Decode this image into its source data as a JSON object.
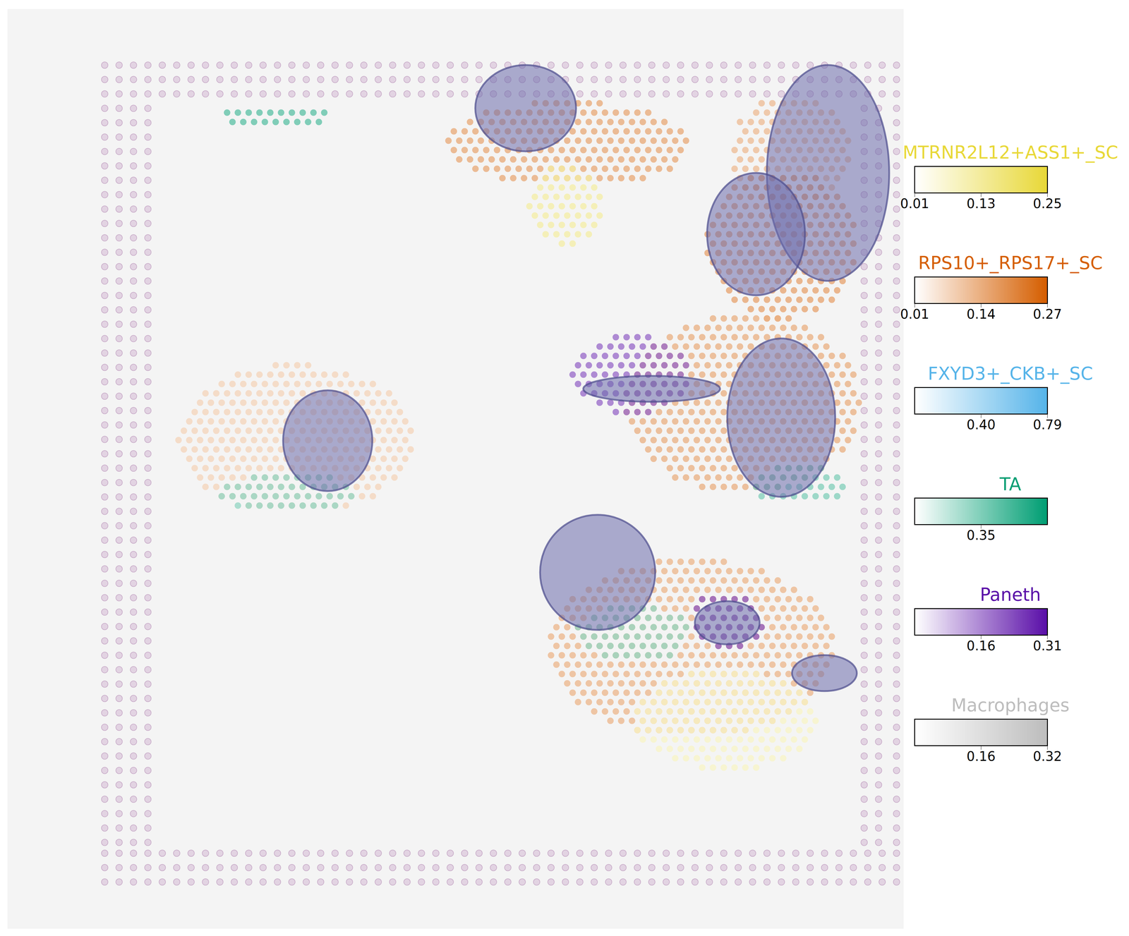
{
  "chart_data": {
    "type": "spatial_scatter",
    "xlim": [
      10,
      1255
    ],
    "ylim": [
      1290,
      12
    ],
    "tick_labels": false,
    "colorbars": [
      {
        "name": "MTRNR2L12+ASS1+_SC",
        "color": "#e8d838",
        "range": [
          0.01,
          0.25
        ],
        "ticks": [
          0.01,
          0.13,
          0.25
        ]
      },
      {
        "name": "RPS10+_RPS17+_SC",
        "color": "#d55e00",
        "range": [
          0.01,
          0.27
        ],
        "ticks": [
          0.01,
          0.14,
          0.27
        ]
      },
      {
        "name": "FXYD3+_CKB+_SC",
        "color": "#56b4e9",
        "range": [
          0.01,
          0.79
        ],
        "ticks": [
          {
            "value": 0.4,
            "label": "0.40"
          },
          0.79
        ]
      },
      {
        "name": "TA",
        "color": "#009e73",
        "range": [
          0.01,
          0.69
        ],
        "ticks": [
          0.35
        ]
      },
      {
        "name": "Paneth",
        "color": "#5a0fa8",
        "range": [
          0.01,
          0.31
        ],
        "ticks": [
          0.16,
          0.31
        ]
      },
      {
        "name": "Macrophages",
        "color": "#bdbdbd",
        "range": [
          0.0,
          0.32
        ],
        "ticks": [
          0.16,
          0.32
        ]
      }
    ],
    "spot_patches": [
      {
        "cell_type": "TA",
        "cx": 385,
        "cy": 162,
        "rx": 80,
        "ry": 14,
        "value": 0.45
      },
      {
        "cell_type": "RPS10+_RPS17+_SC",
        "cx": 790,
        "cy": 200,
        "rx": 170,
        "ry": 60,
        "value": 0.15
      },
      {
        "cell_type": "MTRNR2L12+ASS1+_SC",
        "cx": 785,
        "cy": 285,
        "rx": 55,
        "ry": 55,
        "value": 0.12
      },
      {
        "cell_type": "RPS10+_RPS17+_SC",
        "cx": 410,
        "cy": 610,
        "rx": 165,
        "ry": 105,
        "value": 0.08
      },
      {
        "cell_type": "TA",
        "cx": 400,
        "cy": 685,
        "rx": 95,
        "ry": 28,
        "value": 0.3
      },
      {
        "cell_type": "RPS10+_RPS17+_SC",
        "cx": 1100,
        "cy": 210,
        "rx": 85,
        "ry": 80,
        "value": 0.12
      },
      {
        "cell_type": "RPS10+_RPS17+_SC",
        "cx": 1085,
        "cy": 340,
        "rx": 105,
        "ry": 105,
        "value": 0.16
      },
      {
        "cell_type": "RPS10+_RPS17+_SC",
        "cx": 1030,
        "cy": 560,
        "rx": 165,
        "ry": 125,
        "value": 0.14
      },
      {
        "cell_type": "TA",
        "cx": 1110,
        "cy": 672,
        "rx": 70,
        "ry": 28,
        "value": 0.35
      },
      {
        "cell_type": "Paneth",
        "cx": 875,
        "cy": 520,
        "rx": 80,
        "ry": 55,
        "value": 0.2
      },
      {
        "cell_type": "RPS10+_RPS17+_SC",
        "cx": 960,
        "cy": 900,
        "rx": 200,
        "ry": 125,
        "value": 0.13
      },
      {
        "cell_type": "MTRNR2L12+ASS1+_SC",
        "cx": 1010,
        "cy": 1000,
        "rx": 130,
        "ry": 70,
        "value": 0.08
      },
      {
        "cell_type": "TA",
        "cx": 880,
        "cy": 880,
        "rx": 80,
        "ry": 40,
        "value": 0.3
      },
      {
        "cell_type": "Paneth",
        "cx": 1010,
        "cy": 860,
        "rx": 50,
        "ry": 40,
        "value": 0.22
      }
    ],
    "tissue": [
      {
        "cx": 730,
        "cy": 150,
        "rx": 70,
        "ry": 60
      },
      {
        "cx": 455,
        "cy": 612,
        "rx": 62,
        "ry": 70
      },
      {
        "cx": 1150,
        "cy": 240,
        "rx": 85,
        "ry": 150
      },
      {
        "cx": 1050,
        "cy": 325,
        "rx": 68,
        "ry": 85
      },
      {
        "cx": 1085,
        "cy": 580,
        "rx": 75,
        "ry": 110
      },
      {
        "cx": 830,
        "cy": 795,
        "rx": 80,
        "ry": 80
      },
      {
        "cx": 1145,
        "cy": 935,
        "rx": 45,
        "ry": 25
      },
      {
        "cx": 905,
        "cy": 540,
        "rx": 95,
        "ry": 18
      },
      {
        "cx": 1010,
        "cy": 865,
        "rx": 45,
        "ry": 30
      }
    ]
  }
}
